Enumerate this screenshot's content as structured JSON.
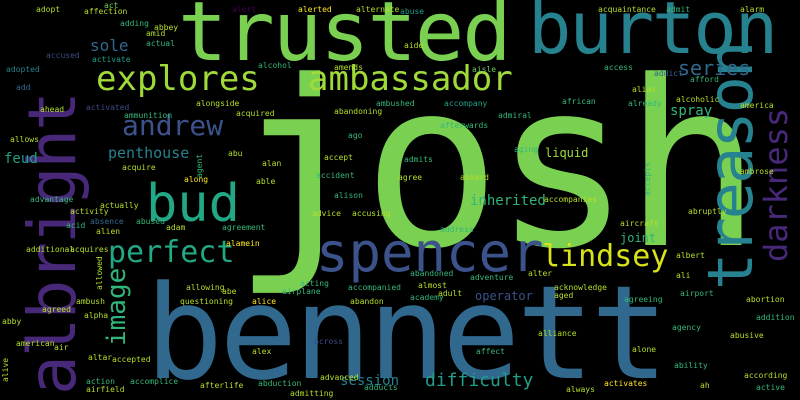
{
  "words": [
    {
      "text": "josh",
      "color": "#7ad151"
    },
    {
      "text": "bennett",
      "color": "#31688e"
    },
    {
      "text": "trusted",
      "color": "#7ad151"
    },
    {
      "text": "burton",
      "color": "#26828e"
    },
    {
      "text": "albright",
      "color": "#482878"
    },
    {
      "text": "treason",
      "color": "#26828e"
    },
    {
      "text": "spencer",
      "color": "#3b528b"
    },
    {
      "text": "explores",
      "color": "#a0da39"
    },
    {
      "text": "ambassador",
      "color": "#a0da39"
    },
    {
      "text": "bud",
      "color": "#22a884"
    },
    {
      "text": "darkness",
      "color": "#482878"
    },
    {
      "text": "andrew",
      "color": "#3b528b"
    },
    {
      "text": "perfect",
      "color": "#22a884"
    },
    {
      "text": "lindsey",
      "color": "#d8e219"
    },
    {
      "text": "image",
      "color": "#31b57b"
    },
    {
      "text": "series",
      "color": "#31688e"
    },
    {
      "text": "sole",
      "color": "#31688e"
    },
    {
      "text": "penthouse",
      "color": "#26828e"
    },
    {
      "text": "difficulty",
      "color": "#1f9e89"
    },
    {
      "text": "inherited",
      "color": "#31b57b"
    },
    {
      "text": "spray",
      "color": "#31b57b"
    },
    {
      "text": "feud",
      "color": "#1f9e89"
    },
    {
      "text": "liquid",
      "color": "#a0da39"
    },
    {
      "text": "session",
      "color": "#26828e"
    },
    {
      "text": "joint",
      "color": "#31b57b"
    },
    {
      "text": "operator",
      "color": "#3b528b"
    },
    {
      "text": "adopt",
      "color": "#b5de2b"
    },
    {
      "text": "affection",
      "color": "#b5de2b"
    },
    {
      "text": "act",
      "color": "#6ece58"
    },
    {
      "text": "adding",
      "color": "#35b779"
    },
    {
      "text": "abbey",
      "color": "#b5de2b"
    },
    {
      "text": "alert",
      "color": "#440154"
    },
    {
      "text": "alerted",
      "color": "#fde725"
    },
    {
      "text": "alternate",
      "color": "#b5de2b"
    },
    {
      "text": "abuse",
      "color": "#1f9e89"
    },
    {
      "text": "acquaintance",
      "color": "#b5de2b"
    },
    {
      "text": "admit",
      "color": "#35b779"
    },
    {
      "text": "alarm",
      "color": "#b5de2b"
    },
    {
      "text": "accused",
      "color": "#3e4989"
    },
    {
      "text": "activate",
      "color": "#1f9e89"
    },
    {
      "text": "actual",
      "color": "#35b779"
    },
    {
      "text": "amid",
      "color": "#b5de2b"
    },
    {
      "text": "adopted",
      "color": "#26828e"
    },
    {
      "text": "add",
      "color": "#31688e"
    },
    {
      "text": "alcohol",
      "color": "#35b779"
    },
    {
      "text": "access",
      "color": "#35b779"
    },
    {
      "text": "addict",
      "color": "#31688e"
    },
    {
      "text": "afford",
      "color": "#35b779"
    },
    {
      "text": "aide",
      "color": "#b5de2b"
    },
    {
      "text": "aisle",
      "color": "#6ece58"
    },
    {
      "text": "alias",
      "color": "#b5de2b"
    },
    {
      "text": "alcoholic",
      "color": "#b5de2b"
    },
    {
      "text": "ahead",
      "color": "#b5de2b"
    },
    {
      "text": "alongside",
      "color": "#b5de2b"
    },
    {
      "text": "ambushed",
      "color": "#35b779"
    },
    {
      "text": "abandoning",
      "color": "#b5de2b"
    },
    {
      "text": "accompany",
      "color": "#1f9e89"
    },
    {
      "text": "african",
      "color": "#35b779"
    },
    {
      "text": "already",
      "color": "#35b779"
    },
    {
      "text": "america",
      "color": "#b5de2b"
    },
    {
      "text": "activated",
      "color": "#3e4989"
    },
    {
      "text": "ammunition",
      "color": "#35b779"
    },
    {
      "text": "acquired",
      "color": "#b5de2b"
    },
    {
      "text": "ago",
      "color": "#35b779"
    },
    {
      "text": "admiral",
      "color": "#35b779"
    },
    {
      "text": "afterwards",
      "color": "#35b779"
    },
    {
      "text": "allows",
      "color": "#b5de2b"
    },
    {
      "text": "abu",
      "color": "#b5de2b"
    },
    {
      "text": "alan",
      "color": "#b5de2b"
    },
    {
      "text": "accept",
      "color": "#b5de2b"
    },
    {
      "text": "admits",
      "color": "#35b779"
    },
    {
      "text": "aging",
      "color": "#35b779"
    },
    {
      "text": "acquire",
      "color": "#b5de2b"
    },
    {
      "text": "able",
      "color": "#b5de2b"
    },
    {
      "text": "accident",
      "color": "#35b779"
    },
    {
      "text": "agree",
      "color": "#b5de2b"
    },
    {
      "text": "aboard",
      "color": "#b5de2b"
    },
    {
      "text": "accepts",
      "color": "#35b779"
    },
    {
      "text": "ambrose",
      "color": "#b5de2b"
    },
    {
      "text": "along",
      "color": "#fde725"
    },
    {
      "text": "alison",
      "color": "#35b779"
    },
    {
      "text": "advantage",
      "color": "#35b779"
    },
    {
      "text": "activity",
      "color": "#b5de2b"
    },
    {
      "text": "actually",
      "color": "#b5de2b"
    },
    {
      "text": "advice",
      "color": "#b5de2b"
    },
    {
      "text": "accusing",
      "color": "#b5de2b"
    },
    {
      "text": "accompanies",
      "color": "#b5de2b"
    },
    {
      "text": "abruptly",
      "color": "#b5de2b"
    },
    {
      "text": "abandon",
      "color": "#b5de2b"
    },
    {
      "text": "acid",
      "color": "#35b779"
    },
    {
      "text": "absence",
      "color": "#31688e"
    },
    {
      "text": "alien",
      "color": "#b5de2b"
    },
    {
      "text": "abused",
      "color": "#35b779"
    },
    {
      "text": "adam",
      "color": "#b5de2b"
    },
    {
      "text": "agreement",
      "color": "#35b779"
    },
    {
      "text": "address",
      "color": "#35b779"
    },
    {
      "text": "aircraft",
      "color": "#b5de2b"
    },
    {
      "text": "additional",
      "color": "#b5de2b"
    },
    {
      "text": "acquires",
      "color": "#b5de2b"
    },
    {
      "text": "alamein",
      "color": "#fde725"
    },
    {
      "text": "abandoned",
      "color": "#35b779"
    },
    {
      "text": "alter",
      "color": "#b5de2b"
    },
    {
      "text": "albert",
      "color": "#b5de2b"
    },
    {
      "text": "adventure",
      "color": "#35b779"
    },
    {
      "text": "ali",
      "color": "#b5de2b"
    },
    {
      "text": "allowed",
      "color": "#b5de2b"
    },
    {
      "text": "acting",
      "color": "#35b779"
    },
    {
      "text": "accompanied",
      "color": "#35b779"
    },
    {
      "text": "almost",
      "color": "#b5de2b"
    },
    {
      "text": "acknowledge",
      "color": "#b5de2b"
    },
    {
      "text": "airport",
      "color": "#35b779"
    },
    {
      "text": "allowing",
      "color": "#b5de2b"
    },
    {
      "text": "abe",
      "color": "#b5de2b"
    },
    {
      "text": "airplane",
      "color": "#35b779"
    },
    {
      "text": "academy",
      "color": "#35b779"
    },
    {
      "text": "adult",
      "color": "#b5de2b"
    },
    {
      "text": "aged",
      "color": "#b5de2b"
    },
    {
      "text": "agreeing",
      "color": "#35b779"
    },
    {
      "text": "abortion",
      "color": "#b5de2b"
    },
    {
      "text": "agreed",
      "color": "#b5de2b"
    },
    {
      "text": "ambush",
      "color": "#b5de2b"
    },
    {
      "text": "questioning",
      "color": "#b5de2b"
    },
    {
      "text": "alice",
      "color": "#fde725"
    },
    {
      "text": "abby",
      "color": "#b5de2b"
    },
    {
      "text": "alpha",
      "color": "#b5de2b"
    },
    {
      "text": "alliance",
      "color": "#b5de2b"
    },
    {
      "text": "agency",
      "color": "#35b779"
    },
    {
      "text": "addition",
      "color": "#35b779"
    },
    {
      "text": "abusive",
      "color": "#b5de2b"
    },
    {
      "text": "american",
      "color": "#b5de2b"
    },
    {
      "text": "air",
      "color": "#b5de2b"
    },
    {
      "text": "altar",
      "color": "#b5de2b"
    },
    {
      "text": "accepted",
      "color": "#b5de2b"
    },
    {
      "text": "alex",
      "color": "#b5de2b"
    },
    {
      "text": "across",
      "color": "#3e4989"
    },
    {
      "text": "affect",
      "color": "#35b779"
    },
    {
      "text": "alone",
      "color": "#b5de2b"
    },
    {
      "text": "ability",
      "color": "#35b779"
    },
    {
      "text": "according",
      "color": "#b5de2b"
    },
    {
      "text": "alive",
      "color": "#b5de2b"
    },
    {
      "text": "action",
      "color": "#35b779"
    },
    {
      "text": "airfield",
      "color": "#b5de2b"
    },
    {
      "text": "accomplice",
      "color": "#35b779"
    },
    {
      "text": "afterlife",
      "color": "#b5de2b"
    },
    {
      "text": "abduction",
      "color": "#35b779"
    },
    {
      "text": "advanced",
      "color": "#b5de2b"
    },
    {
      "text": "adducts",
      "color": "#35b779"
    },
    {
      "text": "always",
      "color": "#b5de2b"
    },
    {
      "text": "activates",
      "color": "#fde725"
    },
    {
      "text": "ah",
      "color": "#b5de2b"
    },
    {
      "text": "active",
      "color": "#35b779"
    },
    {
      "text": "admitting",
      "color": "#b5de2b"
    },
    {
      "text": "amends",
      "color": "#b5de2b"
    },
    {
      "text": "agent",
      "color": "#35b779"
    }
  ]
}
